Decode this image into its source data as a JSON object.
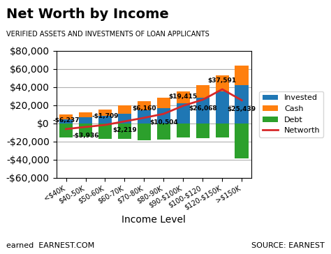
{
  "chart_data": {
    "type": "bar",
    "stacked": true,
    "title": "Net Worth by Income",
    "subtitle": "VERIFIED ASSETS AND INVESTMENTS OF LOAN APPLICANTS",
    "xlabel": "Income Level",
    "annotations": [
      "earned  EARNEST.COM",
      "SOURCE: EARNEST"
    ],
    "categories": [
      "<$40K",
      "$40-50K",
      "$50-60K",
      "$60-70K",
      "$70-80K",
      "$80-90K",
      "$90-$100K",
      "$100-$120",
      "$120-$150K",
      ">$150K"
    ],
    "series": [
      {
        "name": "Invested",
        "values": [
          4500,
          6500,
          8000,
          11000,
          14500,
          17000,
          22000,
          28000,
          35000,
          42000
        ]
      },
      {
        "name": "Cash",
        "values": [
          5000,
          6000,
          7500,
          8500,
          10000,
          11000,
          13000,
          14000,
          18000,
          22000
        ]
      },
      {
        "name": "Debt",
        "values": [
          -15737,
          -14436,
          -17209,
          -17281,
          -18340,
          -17496,
          -15585,
          -15932,
          -15409,
          -38561
        ]
      },
      {
        "name": "Networth",
        "type": "line",
        "data_labels": true,
        "values": [
          -6237,
          -3936,
          -1709,
          2219,
          6160,
          10504,
          19415,
          26068,
          37591,
          25439
        ],
        "value_labels": [
          "-$6,237",
          "-$3,936",
          "-$1,709",
          "$2,219",
          "$6,160",
          "$10,504",
          "$19,415",
          "$26,068",
          "$37,591",
          "$25,439"
        ]
      }
    ],
    "ylim": [
      -60000,
      80000
    ],
    "yticks": [
      {
        "value": -60000,
        "label": "-$60,000"
      },
      {
        "value": -40000,
        "label": "-$40,000"
      },
      {
        "value": -20000,
        "label": "-$20,000"
      },
      {
        "value": 0,
        "label": "$0"
      },
      {
        "value": 20000,
        "label": "$20,000"
      },
      {
        "value": 40000,
        "label": "$40,000"
      },
      {
        "value": 60000,
        "label": "$60,000"
      },
      {
        "value": 80000,
        "label": "$80,000"
      }
    ],
    "grid": true,
    "legend": "right"
  }
}
